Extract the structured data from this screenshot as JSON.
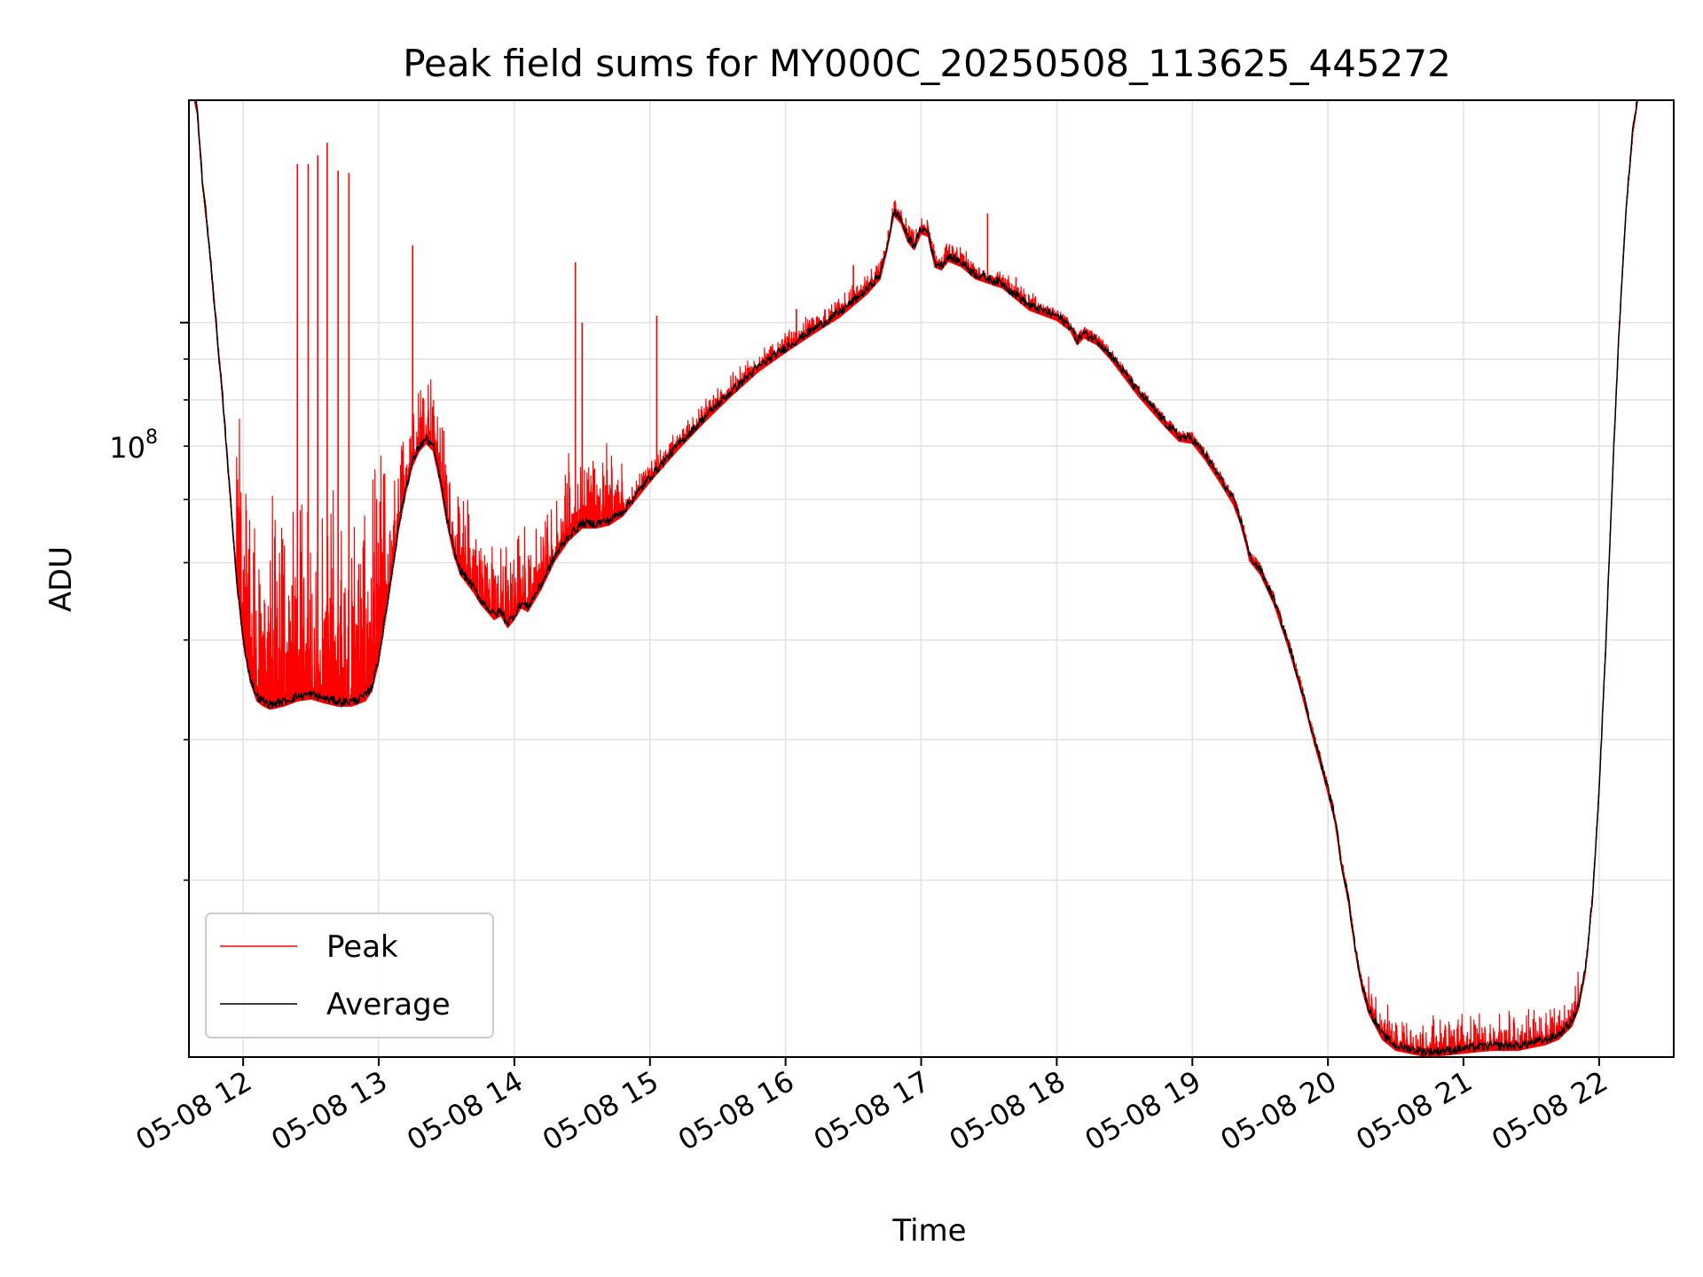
{
  "chart_data": {
    "type": "line",
    "title": "Peak field sums for MY000C_20250508_113625_445272",
    "xlabel": "Time",
    "ylabel": "ADU",
    "y_scale": "log",
    "y_major_tick_label": "10",
    "y_major_tick_exponent": "8",
    "x_tick_labels": [
      "05-08 12",
      "05-08 13",
      "05-08 14",
      "05-08 15",
      "05-08 16",
      "05-08 17",
      "05-08 18",
      "05-08 19",
      "05-08 20",
      "05-08 21",
      "05-08 22"
    ],
    "x_tick_hours": [
      12,
      13,
      14,
      15,
      16,
      17,
      18,
      19,
      20,
      21,
      22
    ],
    "xlim": [
      11.6,
      22.55
    ],
    "ylim": [
      12000000,
      190000000
    ],
    "grid": true,
    "legend_position": "lower-left",
    "series": [
      {
        "name": "Peak",
        "color": "#ff0000",
        "spike_hours": [
          12.4,
          12.55,
          12.62,
          12.7,
          12.78,
          12.48,
          13.25,
          14.45,
          14.5,
          15.05,
          16.08,
          16.5,
          17.49,
          17.7
        ],
        "spike_values": [
          158000000,
          162000000,
          168000000,
          155000000,
          154000000,
          158000000,
          125000000,
          119000000,
          100000000,
          102000000,
          104000000,
          118000000,
          137000000,
          114000000
        ]
      },
      {
        "name": "Average",
        "color": "#000000",
        "x_hours": [
          11.62,
          11.66,
          11.7,
          11.75,
          11.8,
          11.85,
          11.9,
          11.95,
          12.0,
          12.05,
          12.1,
          12.15,
          12.2,
          12.3,
          12.4,
          12.5,
          12.6,
          12.7,
          12.8,
          12.9,
          12.95,
          13.0,
          13.05,
          13.1,
          13.15,
          13.2,
          13.25,
          13.3,
          13.35,
          13.4,
          13.45,
          13.5,
          13.55,
          13.6,
          13.7,
          13.75,
          13.8,
          13.85,
          13.9,
          13.95,
          14.0,
          14.05,
          14.1,
          14.2,
          14.3,
          14.4,
          14.5,
          14.6,
          14.7,
          14.8,
          15.0,
          15.2,
          15.4,
          15.6,
          15.8,
          16.0,
          16.2,
          16.4,
          16.6,
          16.7,
          16.75,
          16.8,
          16.85,
          16.9,
          16.95,
          17.0,
          17.05,
          17.1,
          17.15,
          17.2,
          17.3,
          17.4,
          17.6,
          17.8,
          18.0,
          18.1,
          18.15,
          18.2,
          18.25,
          18.3,
          18.4,
          18.6,
          18.8,
          18.9,
          19.0,
          19.1,
          19.2,
          19.3,
          19.35,
          19.4,
          19.42,
          19.5,
          19.6,
          19.7,
          19.8,
          19.9,
          19.95,
          20.0,
          20.05,
          20.1,
          20.15,
          20.2,
          20.25,
          20.3,
          20.4,
          20.5,
          20.6,
          20.7,
          20.8,
          21.0,
          21.2,
          21.4,
          21.6,
          21.7,
          21.8,
          21.85,
          21.9,
          21.95,
          22.0,
          22.05,
          22.1,
          22.15,
          22.2,
          22.25,
          22.3,
          22.35
        ],
        "y_values": [
          200000000,
          185000000,
          150000000,
          125000000,
          100000000,
          80000000,
          62000000,
          48000000,
          40000000,
          36000000,
          34000000,
          33500000,
          33200000,
          33500000,
          34000000,
          34200000,
          33800000,
          33500000,
          33500000,
          34000000,
          35000000,
          38000000,
          43000000,
          49000000,
          56000000,
          62000000,
          67000000,
          70000000,
          71500000,
          70000000,
          64000000,
          57000000,
          52000000,
          49000000,
          46500000,
          45000000,
          44000000,
          43000000,
          43500000,
          42000000,
          43000000,
          44500000,
          44000000,
          47000000,
          51000000,
          54000000,
          56000000,
          56000000,
          56500000,
          58000000,
          64000000,
          70000000,
          76000000,
          82000000,
          88000000,
          93000000,
          98000000,
          103000000,
          110000000,
          115000000,
          125000000,
          138000000,
          135000000,
          128000000,
          125000000,
          131000000,
          130000000,
          119000000,
          118000000,
          121000000,
          119000000,
          115000000,
          112000000,
          105000000,
          102000000,
          99000000,
          95000000,
          97000000,
          96000000,
          95000000,
          91000000,
          82000000,
          75000000,
          72000000,
          71500000,
          68000000,
          64000000,
          60000000,
          57000000,
          53000000,
          51000000,
          49000000,
          45000000,
          40000000,
          35000000,
          30000000,
          28000000,
          26000000,
          24000000,
          21000000,
          19000000,
          16500000,
          14800000,
          13800000,
          12800000,
          12400000,
          12300000,
          12200000,
          12200000,
          12300000,
          12400000,
          12400000,
          12600000,
          12800000,
          13300000,
          14000000,
          15500000,
          19000000,
          26000000,
          40000000,
          65000000,
          100000000,
          140000000,
          175000000,
          200000000,
          210000000
        ]
      }
    ]
  }
}
